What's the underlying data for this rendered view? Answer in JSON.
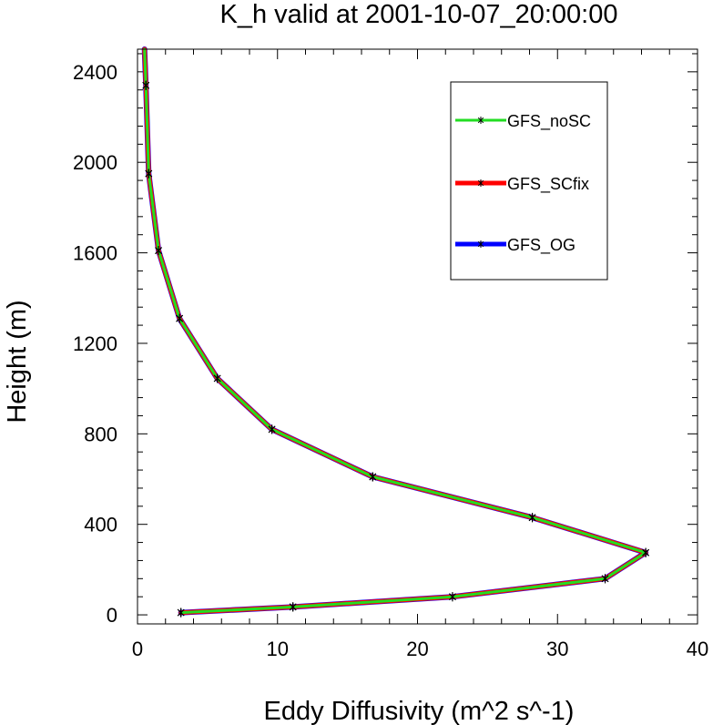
{
  "chart_data": {
    "type": "line",
    "title": "K_h valid at 2001-10-07_20:00:00",
    "xlabel": "Eddy Diffusivity (m^2 s^-1)",
    "ylabel": "Height (m)",
    "xlim": [
      0,
      40
    ],
    "ylim": [
      -40,
      2500
    ],
    "xticks": [
      0,
      10,
      20,
      30,
      40
    ],
    "yticks": [
      0,
      400,
      800,
      1200,
      1600,
      2000,
      2400
    ],
    "grid": false,
    "legend_position": "top-right",
    "marker": "asterisk",
    "series": [
      {
        "name": "GFS_OG",
        "color": "#0000ff",
        "x": [
          3.1,
          11.1,
          22.5,
          33.4,
          36.3,
          28.2,
          16.8,
          9.6,
          5.7,
          3.0,
          1.5,
          0.8,
          0.6,
          0.5
        ],
        "y": [
          10,
          35,
          80,
          160,
          275,
          430,
          610,
          820,
          1045,
          1310,
          1610,
          1950,
          2340,
          2500
        ]
      },
      {
        "name": "GFS_SCfix",
        "color": "#ff0000",
        "x": [
          3.1,
          11.1,
          22.5,
          33.4,
          36.3,
          28.2,
          16.8,
          9.6,
          5.7,
          3.0,
          1.5,
          0.8,
          0.6,
          0.5
        ],
        "y": [
          10,
          35,
          80,
          160,
          275,
          430,
          610,
          820,
          1045,
          1310,
          1610,
          1950,
          2340,
          2500
        ]
      },
      {
        "name": "GFS_noSC",
        "color": "#22dd22",
        "x": [
          3.1,
          11.1,
          22.5,
          33.4,
          36.3,
          28.2,
          16.8,
          9.6,
          5.7,
          3.0,
          1.5,
          0.8,
          0.6,
          0.5
        ],
        "y": [
          10,
          35,
          80,
          160,
          275,
          430,
          610,
          820,
          1045,
          1310,
          1610,
          1950,
          2340,
          2500
        ]
      }
    ],
    "legend": [
      {
        "name": "GFS_noSC",
        "color": "#22dd22"
      },
      {
        "name": "GFS_SCfix",
        "color": "#ff0000"
      },
      {
        "name": "GFS_OG",
        "color": "#0000ff"
      }
    ]
  }
}
